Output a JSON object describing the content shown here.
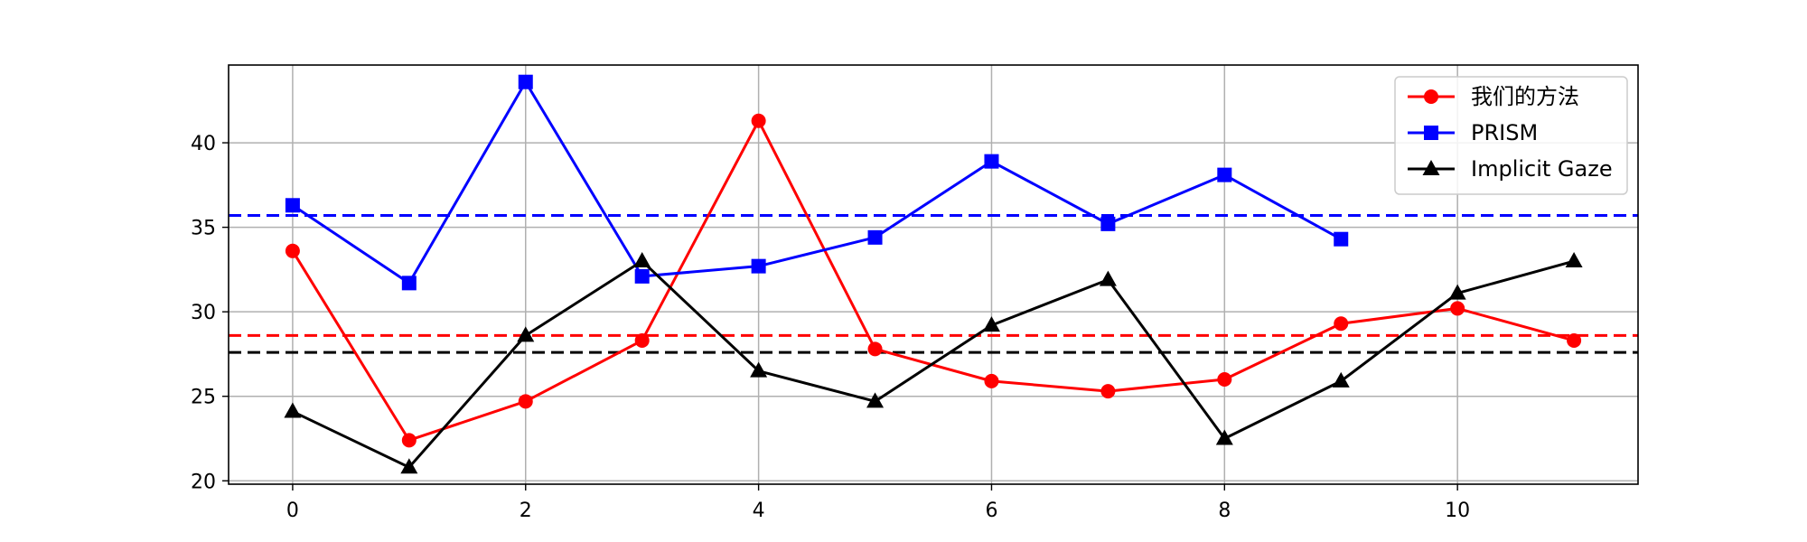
{
  "chart_data": {
    "type": "line",
    "title": "",
    "xlabel": "",
    "ylabel": "",
    "xlim": [
      -0.55,
      11.55
    ],
    "ylim": [
      19.8,
      44.6
    ],
    "grid": true,
    "legend_position": "top-right",
    "x_ticks": [
      0,
      2,
      4,
      6,
      8,
      10
    ],
    "y_ticks": [
      20,
      25,
      30,
      35,
      40
    ],
    "series": [
      {
        "name": "我们的方法",
        "color": "#ff0000",
        "marker": "circle",
        "x": [
          0,
          1,
          2,
          3,
          4,
          5,
          6,
          7,
          8,
          9,
          10,
          11
        ],
        "values": [
          33.6,
          22.4,
          24.7,
          28.3,
          41.3,
          27.8,
          25.9,
          25.3,
          26.0,
          29.3,
          30.2,
          28.3
        ]
      },
      {
        "name": "PRISM",
        "color": "#0000ff",
        "marker": "square",
        "x": [
          0,
          1,
          2,
          3,
          4,
          5,
          6,
          7,
          8,
          9
        ],
        "values": [
          36.3,
          31.7,
          43.6,
          32.1,
          32.7,
          34.4,
          38.9,
          35.2,
          38.1,
          34.3
        ]
      },
      {
        "name": "Implicit Gaze",
        "color": "#000000",
        "marker": "triangle",
        "x": [
          0,
          1,
          2,
          3,
          4,
          5,
          6,
          7,
          8,
          9,
          10,
          11
        ],
        "values": [
          24.1,
          20.8,
          28.6,
          33.0,
          26.5,
          24.7,
          29.2,
          31.9,
          22.5,
          25.9,
          31.1,
          33.0
        ]
      }
    ],
    "reference_lines": [
      {
        "series": "我们的方法",
        "y": 28.6,
        "color": "#ff0000",
        "style": "dashed"
      },
      {
        "series": "PRISM",
        "y": 35.7,
        "color": "#0000ff",
        "style": "dashed"
      },
      {
        "series": "Implicit Gaze",
        "y": 27.6,
        "color": "#000000",
        "style": "dashed"
      }
    ]
  }
}
